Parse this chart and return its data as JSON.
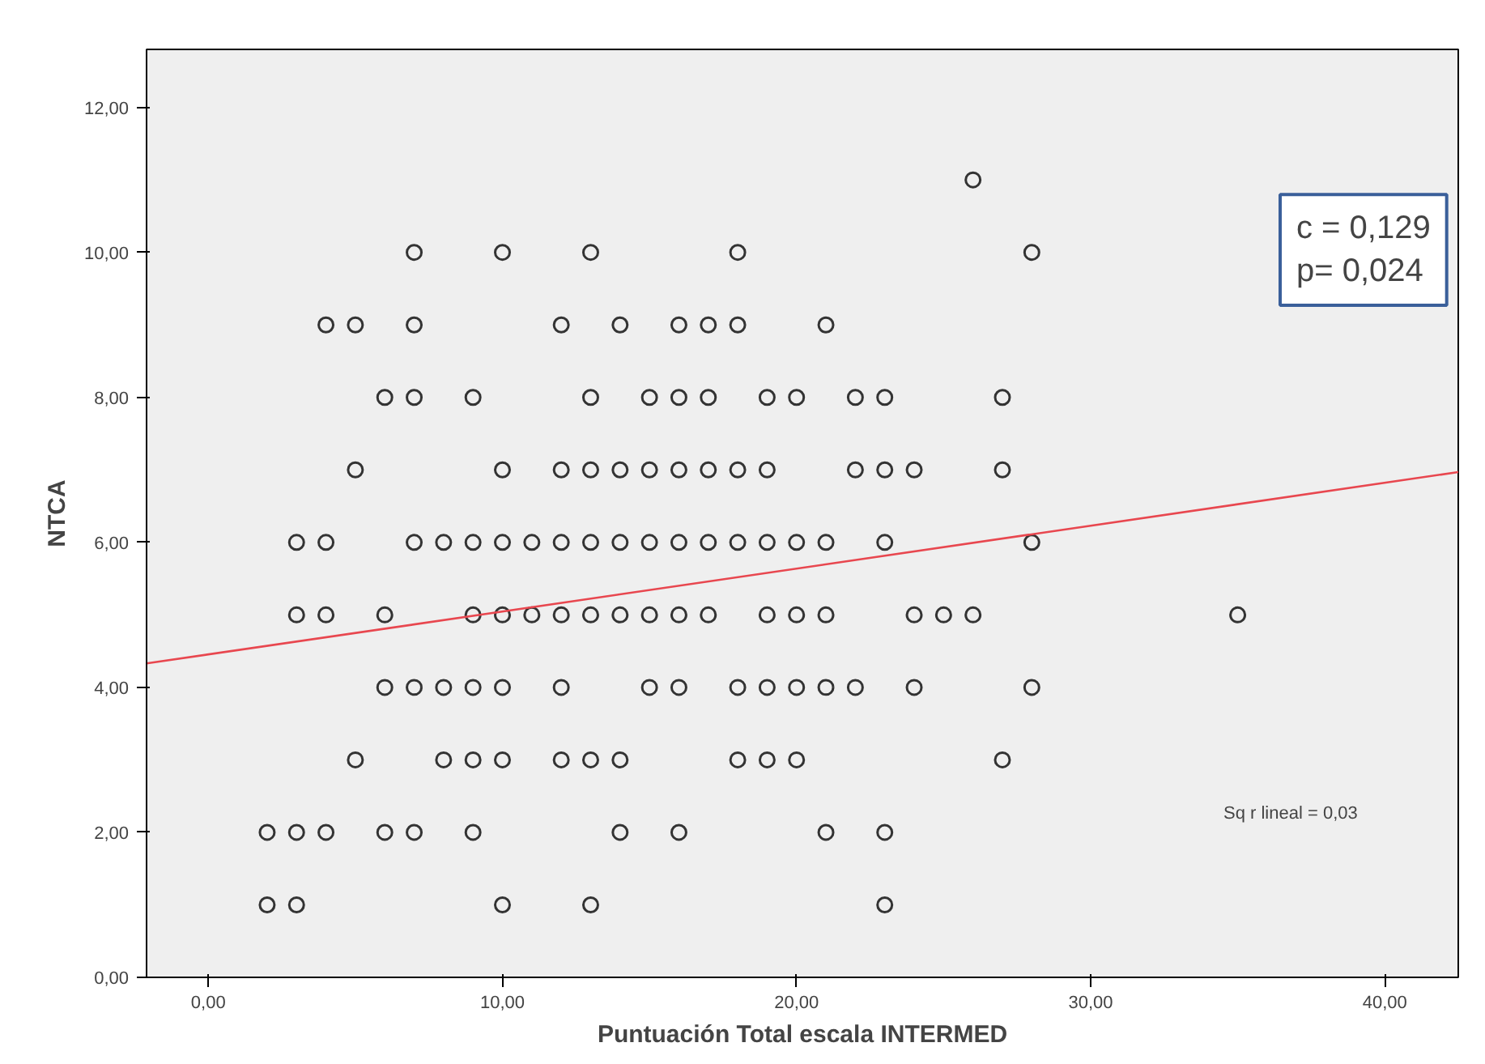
{
  "chart_data": {
    "type": "scatter",
    "xlabel": "Puntuación Total escala INTERMED",
    "ylabel": "NTCA",
    "xlim": [
      -2.1,
      42.5
    ],
    "ylim": [
      0,
      12.8
    ],
    "xticks": [
      {
        "value": 0,
        "label": "0,00"
      },
      {
        "value": 10,
        "label": "10,00"
      },
      {
        "value": 20,
        "label": "20,00"
      },
      {
        "value": 30,
        "label": "30,00"
      },
      {
        "value": 40,
        "label": "40,00"
      }
    ],
    "yticks": [
      {
        "value": 0,
        "label": "0,00"
      },
      {
        "value": 2,
        "label": "2,00"
      },
      {
        "value": 4,
        "label": "4,00"
      },
      {
        "value": 6,
        "label": "6,00"
      },
      {
        "value": 8,
        "label": "8,00"
      },
      {
        "value": 10,
        "label": "10,00"
      },
      {
        "value": 12,
        "label": "12,00"
      }
    ],
    "grid": false,
    "series": [
      {
        "marker": "circle",
        "color": "#333333",
        "x": [
          26,
          7,
          10,
          13,
          18,
          28,
          4,
          5,
          7,
          12,
          14,
          16,
          17,
          18,
          21,
          6,
          7,
          9,
          13,
          15,
          16,
          17,
          19,
          20,
          22,
          23,
          27,
          5,
          10,
          12,
          13,
          14,
          15,
          16,
          17,
          18,
          19,
          22,
          23,
          24,
          27,
          3,
          4,
          7,
          8,
          9,
          10,
          11,
          12,
          13,
          14,
          15,
          16,
          17,
          18,
          19,
          20,
          21,
          23,
          28,
          3,
          4,
          6,
          9,
          10,
          11,
          12,
          13,
          14,
          15,
          16,
          17,
          19,
          20,
          21,
          24,
          25,
          26,
          35,
          6,
          7,
          8,
          9,
          10,
          12,
          15,
          16,
          18,
          19,
          20,
          21,
          22,
          24,
          28,
          5,
          8,
          9,
          10,
          12,
          13,
          14,
          18,
          19,
          20,
          27,
          2,
          3,
          4,
          6,
          7,
          9,
          14,
          16,
          21,
          23,
          2,
          3,
          10,
          13,
          23
        ],
        "values": [
          11,
          10,
          10,
          10,
          10,
          10,
          9,
          9,
          9,
          9,
          9,
          9,
          9,
          9,
          9,
          8,
          8,
          8,
          8,
          8,
          8,
          8,
          8,
          8,
          8,
          8,
          8,
          7,
          7,
          7,
          7,
          7,
          7,
          7,
          7,
          7,
          7,
          7,
          7,
          7,
          7,
          6,
          6,
          6,
          6,
          6,
          6,
          6,
          6,
          6,
          6,
          6,
          6,
          6,
          6,
          6,
          6,
          6,
          6,
          6,
          5,
          5,
          5,
          5,
          5,
          5,
          5,
          5,
          5,
          5,
          5,
          5,
          5,
          5,
          5,
          5,
          5,
          5,
          5,
          4,
          4,
          4,
          4,
          4,
          4,
          4,
          4,
          4,
          4,
          4,
          4,
          4,
          4,
          4,
          3,
          3,
          3,
          3,
          3,
          3,
          3,
          3,
          3,
          3,
          3,
          2,
          2,
          2,
          2,
          2,
          2,
          2,
          2,
          2,
          2,
          1,
          1,
          1,
          1,
          1
        ]
      },
      {
        "type": "line",
        "color": "#e8474f",
        "x": [
          -2.1,
          42.5
        ],
        "values": [
          4.33,
          6.97
        ]
      }
    ],
    "annotations": [
      "c = 0,129\np= 0,024",
      "Sq r lineal = 0,03"
    ]
  }
}
